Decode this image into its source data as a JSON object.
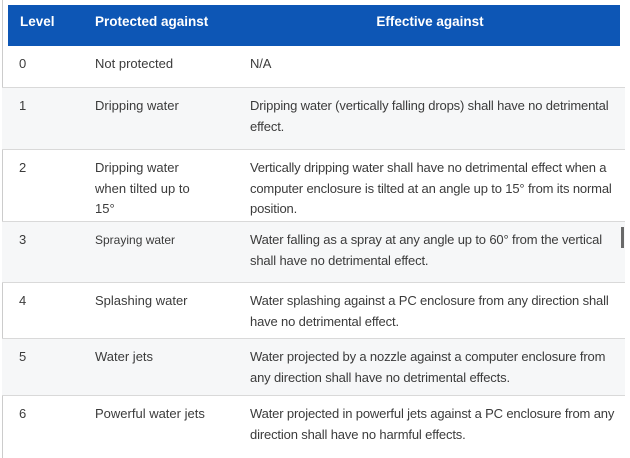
{
  "table": {
    "header": {
      "columns": [
        {
          "label": "Level"
        },
        {
          "label": "Protected against"
        },
        {
          "label": "Effective against"
        }
      ]
    },
    "rows": [
      {
        "level": "0",
        "protected": "Not protected",
        "effective": "N/A"
      },
      {
        "level": "1",
        "protected": "Dripping water",
        "effective": "Dripping water (vertically falling drops) shall have no detrimental effect."
      },
      {
        "level": "2",
        "protected": "Dripping water when tilted up to 15°",
        "effective": "Vertically dripping water shall have no detrimental effect when a computer enclosure is tilted at an angle up to 15° from its normal position."
      },
      {
        "level": "3",
        "protected": "Spraying water",
        "effective": "Water falling as a spray at any angle up to 60° from the vertical shall have no detrimental effect."
      },
      {
        "level": "4",
        "protected": "Splashing water",
        "effective": "Water splashing against a PC enclosure from any direction shall have no detrimental effect."
      },
      {
        "level": "5",
        "protected": "Water jets",
        "effective": "Water projected by a nozzle against a computer enclosure from any direction shall have no detrimental effects."
      },
      {
        "level": "6",
        "protected": "Powerful water jets",
        "effective": "Water projected in powerful jets against a PC enclosure from any direction shall have no harmful effects."
      }
    ],
    "colors": {
      "header_bg": "#0d56b5",
      "header_text": "#ffffff",
      "body_text": "#3b3b3b",
      "band_bg": "#f6f7f8",
      "border": "#d9d9d9"
    }
  }
}
